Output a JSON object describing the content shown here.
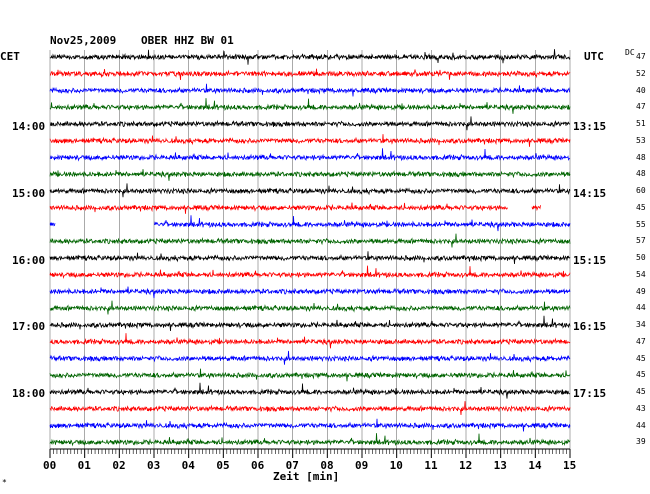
{
  "header": {
    "date": "Nov25,2009",
    "station": "OBER HHZ BW 01",
    "left_timezone": "CET",
    "right_timezone": "UTC",
    "dc_label": "DC"
  },
  "left_time_labels": [
    "14:00",
    "15:00",
    "16:00",
    "17:00",
    "18:00"
  ],
  "right_time_labels": [
    "13:15",
    "14:15",
    "15:15",
    "16:15",
    "17:15"
  ],
  "dc_values": [
    "47",
    "52",
    "40",
    "47",
    "51",
    "53",
    "48",
    "48",
    "60",
    "45",
    "55",
    "57",
    "50",
    "54",
    "49",
    "44",
    "34",
    "47",
    "45",
    "45",
    "45",
    "43",
    "44",
    "39"
  ],
  "x_axis": {
    "ticks": [
      "00",
      "01",
      "02",
      "03",
      "04",
      "05",
      "06",
      "07",
      "08",
      "09",
      "10",
      "11",
      "12",
      "13",
      "14",
      "15"
    ],
    "label": "Zeit [min]"
  },
  "footer_mark": "*",
  "colors": {
    "trace_cycle": [
      "#000000",
      "#ff0000",
      "#0000ff",
      "#006400"
    ],
    "grid": "#000000",
    "background": "#ffffff"
  },
  "chart_data": {
    "type": "line",
    "description_of_axes": "seismogram helicorder, 24 traces of 15 minutes each",
    "x_range_minutes": [
      0,
      15
    ],
    "trace_count": 24,
    "trace_colors_cycle": [
      "black",
      "red",
      "blue",
      "green"
    ],
    "gaps": [
      {
        "trace_index": 9,
        "from_min": 13.2,
        "to_min": 13.9
      },
      {
        "trace_index": 9,
        "from_min": 14.15,
        "to_min": 15
      },
      {
        "trace_index": 10,
        "from_min": 0.15,
        "to_min": 3.0
      }
    ]
  }
}
